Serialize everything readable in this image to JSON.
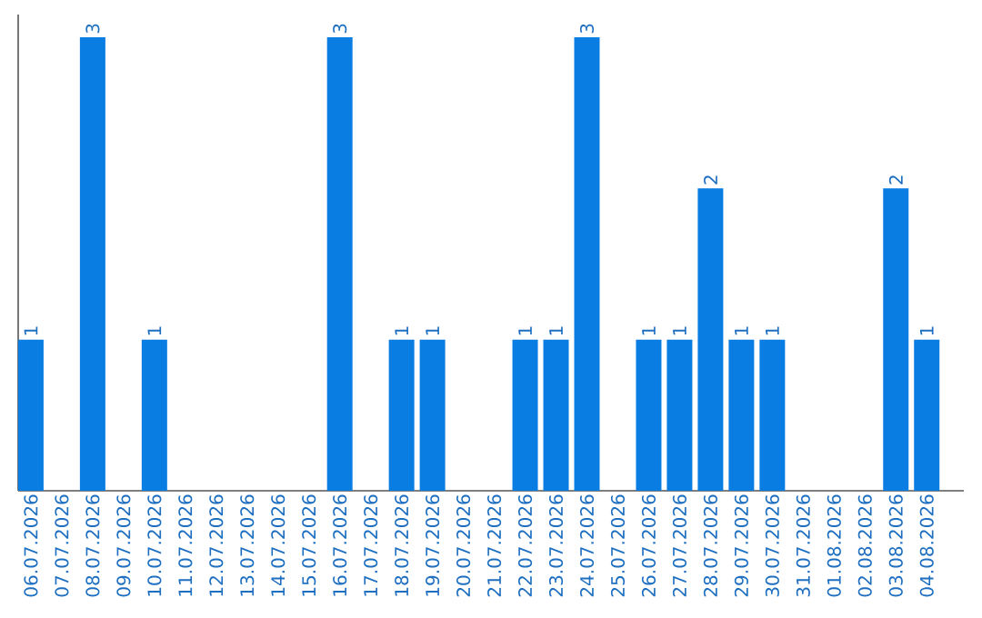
{
  "chart_data": {
    "type": "bar",
    "categories": [
      "06.07.2026",
      "07.07.2026",
      "08.07.2026",
      "09.07.2026",
      "10.07.2026",
      "11.07.2026",
      "12.07.2026",
      "13.07.2026",
      "14.07.2026",
      "15.07.2026",
      "16.07.2026",
      "17.07.2026",
      "18.07.2026",
      "19.07.2026",
      "20.07.2026",
      "21.07.2026",
      "22.07.2026",
      "23.07.2026",
      "24.07.2026",
      "25.07.2026",
      "26.07.2026",
      "27.07.2026",
      "28.07.2026",
      "29.07.2026",
      "30.07.2026",
      "31.07.2026",
      "01.08.2026",
      "02.08.2026",
      "03.08.2026",
      "04.08.2026"
    ],
    "values": [
      1,
      0,
      3,
      0,
      1,
      0,
      0,
      0,
      0,
      0,
      3,
      0,
      1,
      1,
      0,
      0,
      1,
      1,
      3,
      0,
      1,
      1,
      2,
      1,
      1,
      0,
      0,
      0,
      2,
      1
    ],
    "value_labels": [
      "1",
      null,
      "3",
      null,
      "1",
      null,
      null,
      null,
      null,
      null,
      "3",
      null,
      "1",
      "1",
      null,
      null,
      "1",
      "1",
      "3",
      null,
      "1",
      "1",
      "2",
      "1",
      "1",
      null,
      null,
      null,
      "2",
      "1"
    ],
    "color": "#0a7de3",
    "ylim": [
      0,
      3.15
    ],
    "tick_labels": "x"
  }
}
